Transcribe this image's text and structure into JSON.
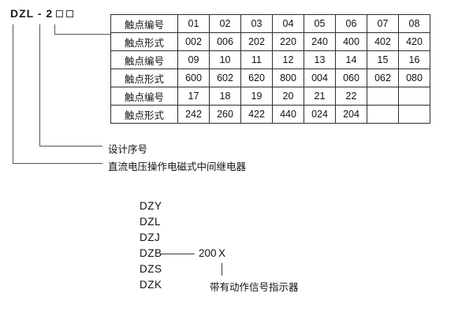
{
  "model": {
    "prefix": "DZL - 2",
    "placeholder_boxes": 2
  },
  "table": {
    "rows": [
      {
        "header": "触点编号",
        "cells": [
          "01",
          "02",
          "03",
          "04",
          "05",
          "06",
          "07",
          "08"
        ]
      },
      {
        "header": "触点形式",
        "cells": [
          "002",
          "006",
          "202",
          "220",
          "240",
          "400",
          "402",
          "420"
        ]
      },
      {
        "header": "触点编号",
        "cells": [
          "09",
          "10",
          "11",
          "12",
          "13",
          "14",
          "15",
          "16"
        ]
      },
      {
        "header": "触点形式",
        "cells": [
          "600",
          "602",
          "620",
          "800",
          "004",
          "060",
          "062",
          "080"
        ]
      },
      {
        "header": "触点编号",
        "cells": [
          "17",
          "18",
          "19",
          "20",
          "21",
          "22",
          "",
          ""
        ]
      },
      {
        "header": "触点形式",
        "cells": [
          "242",
          "260",
          "422",
          "440",
          "024",
          "204",
          "",
          ""
        ]
      }
    ]
  },
  "callouts": {
    "design_serial": "设计序号",
    "relay_description": "直流电压操作电磁式中间继电器"
  },
  "series": {
    "items": [
      "DZY",
      "DZL",
      "DZJ",
      "DZB",
      "DZS",
      "DZK"
    ],
    "dzb_value": "200",
    "dzb_suffix": "X",
    "indicator_note": "带有动作信号指示器"
  },
  "colors": {
    "background": "#ffffff",
    "text": "#111111",
    "table_border": "#2e2e2e",
    "connector_line": "#555555"
  }
}
